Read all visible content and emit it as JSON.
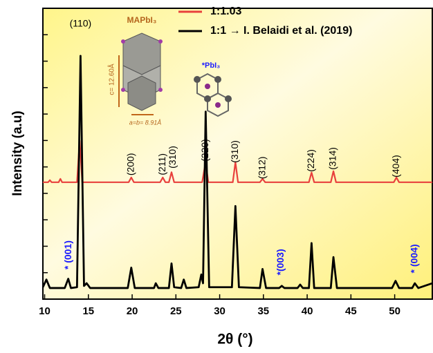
{
  "chart_data": {
    "type": "line",
    "xlabel": "2θ (°)",
    "ylabel": "Intensity (a.u)",
    "xlim": [
      9.8,
      54.3
    ],
    "xticks": [
      10,
      15,
      20,
      25,
      30,
      35,
      40,
      45,
      50
    ],
    "ylim": [
      0,
      11
    ],
    "yticks": [
      0,
      1,
      2,
      3,
      4,
      5,
      6,
      7,
      8,
      9,
      10,
      11
    ],
    "legend": "upper right",
    "series": [
      {
        "name": "1:1.03",
        "color": "#e8403c",
        "x": [
          9.8,
          10.4,
          10.6,
          10.8,
          11.6,
          11.8,
          12.0,
          13.7,
          14.0,
          14.3,
          19.6,
          19.9,
          20.2,
          23.2,
          23.5,
          23.8,
          24.2,
          24.5,
          24.8,
          28.0,
          28.4,
          28.7,
          31.5,
          31.8,
          32.1,
          34.6,
          34.9,
          35.2,
          40.2,
          40.5,
          40.8,
          42.7,
          43.0,
          43.3,
          49.9,
          50.2,
          50.5,
          54.3
        ],
        "values": [
          4.42,
          4.42,
          4.5,
          4.42,
          4.42,
          4.55,
          4.42,
          4.42,
          6.0,
          4.42,
          4.42,
          4.6,
          4.42,
          4.42,
          4.6,
          4.42,
          4.42,
          4.8,
          4.42,
          4.42,
          5.2,
          4.42,
          4.42,
          5.18,
          4.42,
          4.42,
          4.55,
          4.42,
          4.42,
          4.79,
          4.42,
          4.42,
          4.84,
          4.42,
          4.42,
          4.6,
          4.42,
          4.42
        ]
      },
      {
        "name": "1:1 → I. Belaidi et al. (2019)",
        "color": "#000000",
        "x": [
          9.8,
          10.2,
          10.6,
          12.3,
          12.7,
          13.0,
          13.7,
          14.1,
          14.5,
          14.8,
          15.2,
          19.5,
          19.9,
          20.3,
          22.5,
          22.7,
          23.0,
          24.2,
          24.5,
          24.8,
          25.6,
          25.9,
          26.2,
          27.6,
          27.9,
          28.1,
          28.4,
          28.8,
          31.4,
          31.8,
          32.2,
          34.6,
          34.9,
          35.3,
          36.8,
          37.1,
          37.4,
          38.9,
          39.2,
          39.5,
          40.2,
          40.5,
          40.8,
          42.7,
          43.0,
          43.4,
          49.7,
          50.1,
          50.5,
          52.0,
          52.3,
          52.7,
          54.3
        ],
        "values": [
          0.45,
          0.74,
          0.42,
          0.42,
          0.77,
          0.42,
          0.45,
          9.2,
          0.5,
          0.6,
          0.42,
          0.42,
          1.19,
          0.42,
          0.42,
          0.6,
          0.42,
          0.42,
          1.35,
          0.45,
          0.42,
          0.74,
          0.42,
          0.45,
          0.93,
          0.6,
          7.09,
          0.45,
          0.45,
          3.52,
          0.45,
          0.42,
          1.14,
          0.42,
          0.42,
          0.5,
          0.42,
          0.42,
          0.55,
          0.42,
          0.42,
          2.12,
          0.42,
          0.42,
          1.59,
          0.42,
          0.42,
          0.69,
          0.42,
          0.42,
          0.6,
          0.42,
          0.6
        ]
      }
    ],
    "peak_labels": [
      {
        "text": "(110)",
        "x": 14.1,
        "y": 10.4,
        "rotate": false,
        "color": "#000000"
      },
      {
        "text": "(200)",
        "x": 19.9,
        "y": 5.1,
        "rotate": true,
        "color": "#000000"
      },
      {
        "text": "(211)",
        "x": 23.5,
        "y": 5.1,
        "rotate": true,
        "color": "#000000"
      },
      {
        "text": "(310)",
        "x": 24.7,
        "y": 5.37,
        "rotate": true,
        "color": "#000000"
      },
      {
        "text": "(220)",
        "x": 28.4,
        "y": 5.63,
        "rotate": true,
        "color": "#000000"
      },
      {
        "text": "(310)",
        "x": 31.8,
        "y": 5.58,
        "rotate": true,
        "color": "#000000"
      },
      {
        "text": "(312)",
        "x": 34.9,
        "y": 4.97,
        "rotate": true,
        "color": "#000000"
      },
      {
        "text": "(224)",
        "x": 40.5,
        "y": 5.24,
        "rotate": true,
        "color": "#000000"
      },
      {
        "text": "(314)",
        "x": 43.0,
        "y": 5.32,
        "rotate": true,
        "color": "#000000"
      },
      {
        "text": "(404)",
        "x": 50.2,
        "y": 5.03,
        "rotate": true,
        "color": "#000000"
      },
      {
        "text": "* (001)",
        "x": 12.76,
        "y": 1.67,
        "rotate": true,
        "color": "#1a1aff"
      },
      {
        "text": "*(003)",
        "x": 37.0,
        "y": 1.4,
        "rotate": true,
        "color": "#1a1aff"
      },
      {
        "text": "* (004)",
        "x": 52.3,
        "y": 1.53,
        "rotate": true,
        "color": "#1a1aff"
      }
    ],
    "inset": {
      "title": "MAPbI₃",
      "c_label": "c= 12.60Å",
      "ab_label": "a=b= 8.91Å",
      "pbi3_label": "*PbI₃"
    }
  }
}
